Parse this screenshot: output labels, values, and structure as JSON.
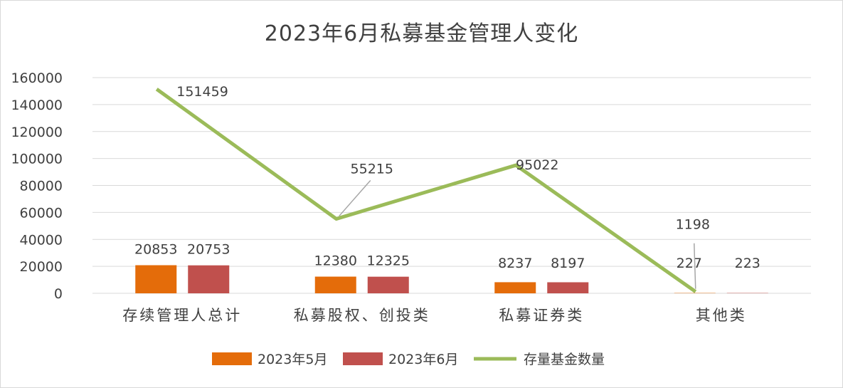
{
  "chart_data": {
    "type": "bar",
    "title": "2023年6月私募基金管理人变化",
    "categories": [
      "存续管理人总计",
      "私募股权、创投类",
      "私募证券类",
      "其他类"
    ],
    "series": [
      {
        "name": "2023年5月",
        "type": "bar",
        "color": "#E46C0A",
        "values": [
          20853,
          12380,
          8237,
          227
        ]
      },
      {
        "name": "2023年6月",
        "type": "bar",
        "color": "#C0504D",
        "values": [
          20753,
          12325,
          8197,
          223
        ]
      },
      {
        "name": "存量基金数量",
        "type": "line",
        "color": "#9BBB59",
        "values": [
          151459,
          55215,
          95022,
          1198
        ]
      }
    ],
    "ylim": [
      0,
      160000
    ],
    "yticks": [
      "0",
      "20000",
      "40000",
      "60000",
      "80000",
      "100000",
      "120000",
      "140000",
      "160000"
    ],
    "grid": true,
    "legend": "bottom"
  }
}
